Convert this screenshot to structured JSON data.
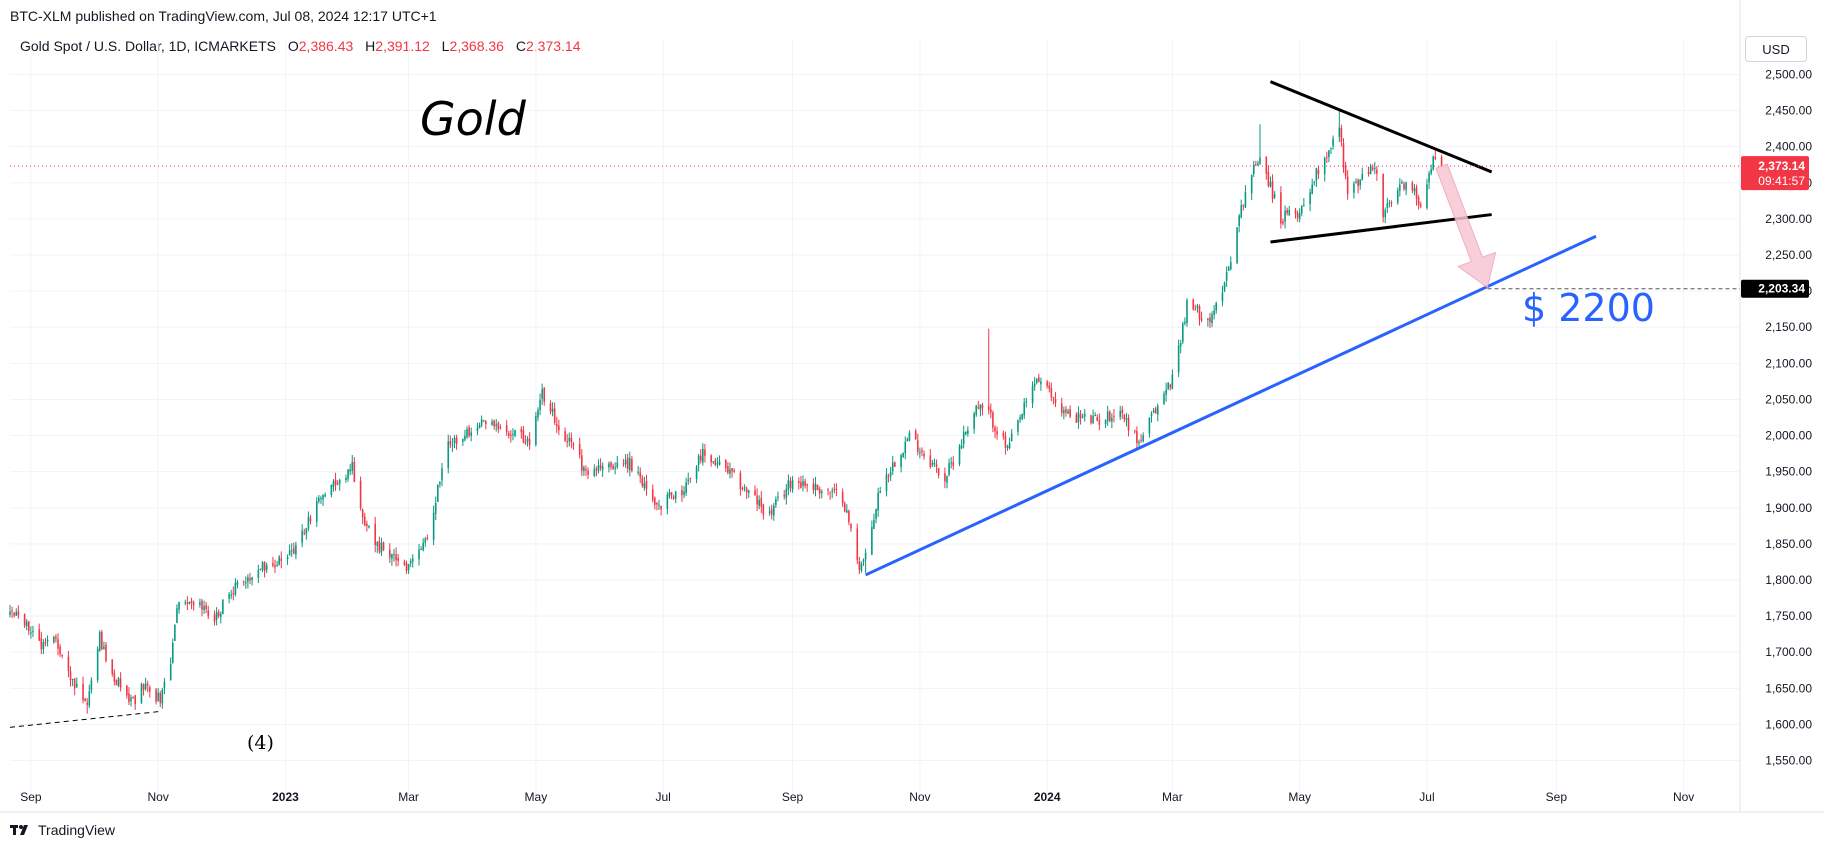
{
  "header": {
    "publish_line": "BTC-XLM published on TradingView.com, Jul 08, 2024 12:17 UTC+1"
  },
  "legend": {
    "symbol": "Gold Spot / U.S. Dollar, 1D, ICMARKETS",
    "open_label": "O",
    "open": "2,386.43",
    "high_label": "H",
    "high": "2,391.12",
    "low_label": "L",
    "low": "2,368.36",
    "close_label": "C",
    "close": "2,373.14"
  },
  "currency": "USD",
  "annotations": {
    "title": "Gold",
    "target": "$ 2200",
    "wave": "(4)"
  },
  "price_tag": {
    "price": "2,373.14",
    "countdown": "09:41:57"
  },
  "target_tag": {
    "price": "2,203.34"
  },
  "footer": {
    "brand": "TradingView"
  },
  "colors": {
    "up": "#089981",
    "down": "#f23645",
    "trendline": "#2962ff",
    "triangle": "#000000",
    "arrow": "#f7c6d2",
    "grid": "#f0f3fa"
  },
  "chart_data": {
    "type": "candlestick",
    "title": "Gold Spot / U.S. Dollar, 1D, ICMARKETS",
    "y_ticks": [
      "2,500.00",
      "2,450.00",
      "2,400.00",
      "2,350.00",
      "2,300.00",
      "2,250.00",
      "2,200.00",
      "2,150.00",
      "2,100.00",
      "2,050.00",
      "2,000.00",
      "1,950.00",
      "1,900.00",
      "1,850.00",
      "1,800.00",
      "1,750.00",
      "1,700.00",
      "1,650.00",
      "1,600.00",
      "1,550.00"
    ],
    "y_tick_values": [
      2500,
      2450,
      2400,
      2350,
      2300,
      2250,
      2200,
      2150,
      2100,
      2050,
      2000,
      1950,
      1900,
      1850,
      1800,
      1750,
      1700,
      1650,
      1600,
      1550
    ],
    "ylim": [
      1530,
      2520
    ],
    "x_range": [
      "2022-08-22",
      "2024-11-28"
    ],
    "x_ticks": [
      {
        "label": "Sep",
        "date": "2022-09-01",
        "bold": false
      },
      {
        "label": "Nov",
        "date": "2022-11-01",
        "bold": false
      },
      {
        "label": "2023",
        "date": "2023-01-01",
        "bold": true
      },
      {
        "label": "Mar",
        "date": "2023-03-01",
        "bold": false
      },
      {
        "label": "May",
        "date": "2023-05-01",
        "bold": false
      },
      {
        "label": "Jul",
        "date": "2023-07-01",
        "bold": false
      },
      {
        "label": "Sep",
        "date": "2023-09-01",
        "bold": false
      },
      {
        "label": "Nov",
        "date": "2023-11-01",
        "bold": false
      },
      {
        "label": "2024",
        "date": "2024-01-01",
        "bold": true
      },
      {
        "label": "Mar",
        "date": "2024-03-01",
        "bold": false
      },
      {
        "label": "May",
        "date": "2024-05-01",
        "bold": false
      },
      {
        "label": "Jul",
        "date": "2024-07-01",
        "bold": false
      },
      {
        "label": "Sep",
        "date": "2024-09-01",
        "bold": false
      },
      {
        "label": "Nov",
        "date": "2024-11-01",
        "bold": false
      }
    ],
    "close_path": [
      [
        "2022-08-22",
        1750
      ],
      [
        "2022-08-26",
        1760
      ],
      [
        "2022-09-05",
        1710
      ],
      [
        "2022-09-12",
        1720
      ],
      [
        "2022-09-23",
        1650
      ],
      [
        "2022-09-28",
        1625
      ],
      [
        "2022-10-04",
        1720
      ],
      [
        "2022-10-10",
        1670
      ],
      [
        "2022-10-20",
        1630
      ],
      [
        "2022-10-25",
        1655
      ],
      [
        "2022-11-02",
        1635
      ],
      [
        "2022-11-07",
        1690
      ],
      [
        "2022-11-10",
        1760
      ],
      [
        "2022-11-15",
        1775
      ],
      [
        "2022-11-28",
        1745
      ],
      [
        "2022-12-05",
        1785
      ],
      [
        "2022-12-20",
        1815
      ],
      [
        "2023-01-05",
        1840
      ],
      [
        "2023-01-20",
        1925
      ],
      [
        "2023-02-02",
        1955
      ],
      [
        "2023-02-08",
        1875
      ],
      [
        "2023-02-15",
        1845
      ],
      [
        "2023-02-28",
        1815
      ],
      [
        "2023-03-10",
        1865
      ],
      [
        "2023-03-20",
        1985
      ],
      [
        "2023-04-05",
        2020
      ],
      [
        "2023-04-18",
        2005
      ],
      [
        "2023-04-28",
        1990
      ],
      [
        "2023-05-04",
        2060
      ],
      [
        "2023-05-12",
        2015
      ],
      [
        "2023-05-25",
        1950
      ],
      [
        "2023-06-05",
        1960
      ],
      [
        "2023-06-15",
        1960
      ],
      [
        "2023-06-29",
        1905
      ],
      [
        "2023-07-10",
        1925
      ],
      [
        "2023-07-20",
        1975
      ],
      [
        "2023-08-01",
        1950
      ],
      [
        "2023-08-21",
        1890
      ],
      [
        "2023-09-01",
        1940
      ],
      [
        "2023-09-15",
        1925
      ],
      [
        "2023-09-25",
        1915
      ],
      [
        "2023-10-03",
        1820
      ],
      [
        "2023-10-06",
        1830
      ],
      [
        "2023-10-13",
        1930
      ],
      [
        "2023-10-27",
        2000
      ],
      [
        "2023-11-13",
        1940
      ],
      [
        "2023-11-28",
        2040
      ],
      [
        "2023-12-04",
        2030
      ],
      [
        "2023-12-13",
        1980
      ],
      [
        "2023-12-27",
        2080
      ],
      [
        "2024-01-10",
        2030
      ],
      [
        "2024-01-25",
        2020
      ],
      [
        "2024-02-05",
        2035
      ],
      [
        "2024-02-14",
        1990
      ],
      [
        "2024-03-01",
        2080
      ],
      [
        "2024-03-08",
        2180
      ],
      [
        "2024-03-20",
        2160
      ],
      [
        "2024-03-28",
        2235
      ],
      [
        "2024-04-05",
        2340
      ],
      [
        "2024-04-12",
        2390
      ],
      [
        "2024-04-22",
        2300
      ],
      [
        "2024-05-01",
        2310
      ],
      [
        "2024-05-10",
        2370
      ],
      [
        "2024-05-20",
        2425
      ],
      [
        "2024-05-24",
        2335
      ],
      [
        "2024-06-06",
        2375
      ],
      [
        "2024-06-10",
        2305
      ],
      [
        "2024-06-20",
        2350
      ],
      [
        "2024-06-28",
        2325
      ],
      [
        "2024-07-05",
        2390
      ],
      [
        "2024-07-08",
        2373
      ]
    ],
    "wick_highs": [
      [
        "2023-12-04",
        2148
      ],
      [
        "2023-05-04",
        2072
      ],
      [
        "2024-04-12",
        2431
      ],
      [
        "2024-05-20",
        2450
      ],
      [
        "2024-07-05",
        2392
      ]
    ],
    "wick_lows": [
      [
        "2022-09-28",
        1615
      ],
      [
        "2023-10-06",
        1810
      ],
      [
        "2024-02-14",
        1984
      ],
      [
        "2024-04-22",
        2292
      ]
    ],
    "last_price": 2373.14,
    "target_price": 2203.34,
    "drawings": {
      "trendline_support": [
        [
          "2023-10-06",
          1807
        ],
        [
          "2024-09-20",
          2276
        ]
      ],
      "triangle_upper": [
        [
          "2024-04-17",
          2490
        ],
        [
          "2024-08-01",
          2365
        ]
      ],
      "triangle_lower": [
        [
          "2024-04-17",
          2268
        ],
        [
          "2024-08-01",
          2306
        ]
      ],
      "wave4_dashed": [
        [
          "2022-08-22",
          1596
        ],
        [
          "2022-11-02",
          1618
        ]
      ],
      "target_dotted_from": "2024-07-30",
      "arrow_from": [
        "2024-07-08",
        2373
      ],
      "arrow_to": [
        "2024-07-30",
        2205
      ]
    }
  }
}
